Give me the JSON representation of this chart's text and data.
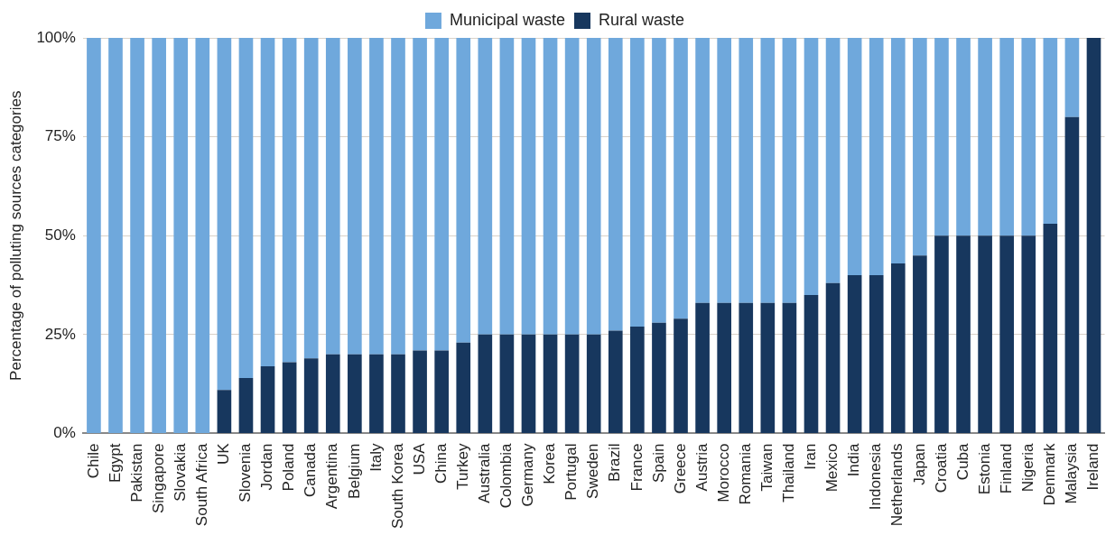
{
  "chart_data": {
    "type": "bar",
    "stacked": true,
    "ylabel": "Percentage of polluting sources categories",
    "categories": [
      "Chile",
      "Egypt",
      "Pakistan",
      "Singapore",
      "Slovakia",
      "South Africa",
      "UK",
      "Slovenia",
      "Jordan",
      "Poland",
      "Canada",
      "Argentina",
      "Belgium",
      "Italy",
      "South Korea",
      "USA",
      "China",
      "Turkey",
      "Australia",
      "Colombia",
      "Germany",
      "Korea",
      "Portugal",
      "Sweden",
      "Brazil",
      "France",
      "Spain",
      "Greece",
      "Austria",
      "Morocco",
      "Romania",
      "Taiwan",
      "Thailand",
      "Iran",
      "Mexico",
      "India",
      "Indonesia",
      "Netherlands",
      "Japan",
      "Croatia",
      "Cuba",
      "Estonia",
      "Finland",
      "Nigeria",
      "Denmark",
      "Malaysia",
      "Ireland"
    ],
    "series": [
      {
        "name": "Rural waste",
        "color": "#17375e",
        "values": [
          0,
          0,
          0,
          0,
          0,
          0,
          11,
          14,
          17,
          18,
          19,
          20,
          20,
          20,
          20,
          21,
          21,
          23,
          25,
          25,
          25,
          25,
          25,
          25,
          26,
          27,
          28,
          29,
          33,
          33,
          33,
          33,
          33,
          35,
          38,
          40,
          40,
          43,
          45,
          50,
          50,
          50,
          50,
          50,
          53,
          80,
          100
        ]
      },
      {
        "name": "Municipal waste",
        "color": "#6fa8dc",
        "values": [
          100,
          100,
          100,
          100,
          100,
          100,
          89,
          86,
          83,
          82,
          81,
          80,
          80,
          80,
          80,
          79,
          79,
          77,
          75,
          75,
          75,
          75,
          75,
          75,
          74,
          73,
          72,
          71,
          67,
          67,
          67,
          67,
          67,
          65,
          62,
          60,
          60,
          57,
          55,
          50,
          50,
          50,
          50,
          50,
          47,
          20,
          0
        ]
      }
    ],
    "ylim": [
      0,
      100
    ],
    "yticks": [
      {
        "value": 0,
        "label": "0%"
      },
      {
        "value": 25,
        "label": "25%"
      },
      {
        "value": 50,
        "label": "50%"
      },
      {
        "value": 75,
        "label": "75%"
      },
      {
        "value": 100,
        "label": "100%"
      }
    ],
    "grid": "y",
    "legend": "top"
  }
}
